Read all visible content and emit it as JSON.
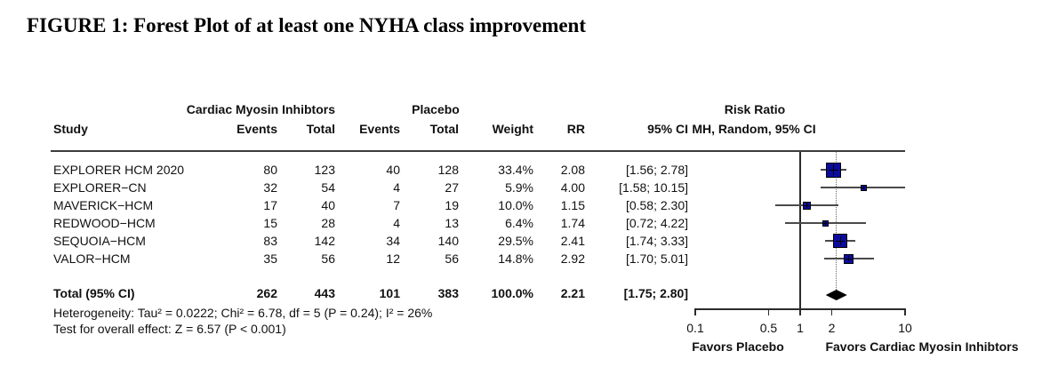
{
  "title": "FIGURE 1: Forest Plot of at least one NYHA class improvement",
  "table": {
    "group_headers": {
      "treatment": "Cardiac Myosin Inhibtors",
      "control": "Placebo",
      "effect": "Risk Ratio"
    },
    "columns": {
      "study": "Study",
      "events": "Events",
      "total": "Total",
      "weight": "Weight",
      "rr": "RR",
      "ci": "95% CI",
      "effect_sub": "MH, Random, 95% CI"
    }
  },
  "chart_data": {
    "type": "forest",
    "x_scale": "log",
    "x_range": [
      0.1,
      10
    ],
    "x_ticks": [
      0.1,
      0.5,
      1,
      2,
      10
    ],
    "ref_line": 1,
    "pooled_line": 2.21,
    "studies": [
      {
        "name": "EXPLORER HCM 2020",
        "t_events": 80,
        "t_total": 123,
        "c_events": 40,
        "c_total": 128,
        "weight": "33.4%",
        "weight_val": 33.4,
        "rr": 2.08,
        "rr_label": "2.08",
        "ci_low": 1.56,
        "ci_high": 2.78,
        "ci_label": "[1.56; 2.78]"
      },
      {
        "name": "EXPLORER−CN",
        "t_events": 32,
        "t_total": 54,
        "c_events": 4,
        "c_total": 27,
        "weight": "5.9%",
        "weight_val": 5.9,
        "rr": 4.0,
        "rr_label": "4.00",
        "ci_low": 1.58,
        "ci_high": 10.15,
        "ci_label": "[1.58; 10.15]"
      },
      {
        "name": "MAVERICK−HCM",
        "t_events": 17,
        "t_total": 40,
        "c_events": 7,
        "c_total": 19,
        "weight": "10.0%",
        "weight_val": 10.0,
        "rr": 1.15,
        "rr_label": "1.15",
        "ci_low": 0.58,
        "ci_high": 2.3,
        "ci_label": "[0.58; 2.30]"
      },
      {
        "name": "REDWOOD−HCM",
        "t_events": 15,
        "t_total": 28,
        "c_events": 4,
        "c_total": 13,
        "weight": "6.4%",
        "weight_val": 6.4,
        "rr": 1.74,
        "rr_label": "1.74",
        "ci_low": 0.72,
        "ci_high": 4.22,
        "ci_label": "[0.72; 4.22]"
      },
      {
        "name": "SEQUOIA−HCM",
        "t_events": 83,
        "t_total": 142,
        "c_events": 34,
        "c_total": 140,
        "weight": "29.5%",
        "weight_val": 29.5,
        "rr": 2.41,
        "rr_label": "2.41",
        "ci_low": 1.74,
        "ci_high": 3.33,
        "ci_label": "[1.74; 3.33]"
      },
      {
        "name": "VALOR−HCM",
        "t_events": 35,
        "t_total": 56,
        "c_events": 12,
        "c_total": 56,
        "weight": "14.8%",
        "weight_val": 14.8,
        "rr": 2.92,
        "rr_label": "2.92",
        "ci_low": 1.7,
        "ci_high": 5.01,
        "ci_label": "[1.70; 5.01]"
      }
    ],
    "total": {
      "name": "Total (95% CI)",
      "t_events": 262,
      "t_total": 443,
      "c_events": 101,
      "c_total": 383,
      "weight": "100.0%",
      "rr": 2.21,
      "rr_label": "2.21",
      "ci_low": 1.75,
      "ci_high": 2.8,
      "ci_label": "[1.75; 2.80]"
    },
    "heterogeneity": "Heterogeneity: Tau² = 0.0222; Chi² = 6.78, df = 5 (P = 0.24); I² = 26%",
    "overall_effect": "Test for overall effect: Z = 6.57 (P < 0.001)",
    "axis_labels": {
      "left": "Favors Placebo",
      "right": "Favors Cardiac Myosin Inhibtors"
    },
    "colors": {
      "square": "#0b0b9d",
      "square_border": "#000000",
      "ci_line": "#4a4a4a",
      "diamond": "#000000",
      "axis": "#2b2b2b"
    }
  }
}
